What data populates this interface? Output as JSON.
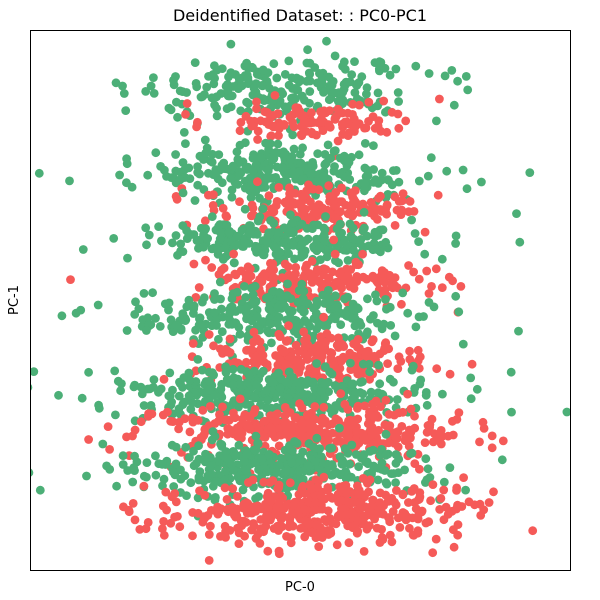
{
  "chart_data": {
    "type": "scatter",
    "title": "Deidentified Dataset: : PC0-PC1",
    "xlabel": "PC-0",
    "ylabel": "PC-1",
    "xlim": [
      -1.0,
      1.0
    ],
    "ylim": [
      -1.0,
      1.0
    ],
    "ticks_shown": false,
    "grid": false,
    "legend": "none",
    "marker_radius": 4.4,
    "series": [
      {
        "color": "#4caf77",
        "clusters": [
          {
            "cx": -0.05,
            "cy": 0.78,
            "sx": 0.24,
            "sy": 0.06,
            "n": 230
          },
          {
            "cx": -0.08,
            "cy": 0.47,
            "sx": 0.22,
            "sy": 0.05,
            "n": 300
          },
          {
            "cx": -0.06,
            "cy": 0.22,
            "sx": 0.22,
            "sy": 0.045,
            "n": 260
          },
          {
            "cx": -0.1,
            "cy": -0.06,
            "sx": 0.24,
            "sy": 0.05,
            "n": 300
          },
          {
            "cx": -0.12,
            "cy": -0.35,
            "sx": 0.27,
            "sy": 0.05,
            "n": 380
          },
          {
            "cx": -0.1,
            "cy": -0.62,
            "sx": 0.25,
            "sy": 0.05,
            "n": 360
          }
        ]
      },
      {
        "color": "#f55a58",
        "clusters": [
          {
            "cx": 0.08,
            "cy": 0.66,
            "sx": 0.16,
            "sy": 0.035,
            "n": 120
          },
          {
            "cx": 0.07,
            "cy": 0.34,
            "sx": 0.19,
            "sy": 0.04,
            "n": 180
          },
          {
            "cx": 0.05,
            "cy": 0.07,
            "sx": 0.19,
            "sy": 0.04,
            "n": 200
          },
          {
            "cx": 0.05,
            "cy": -0.21,
            "sx": 0.2,
            "sy": 0.045,
            "n": 240
          },
          {
            "cx": 0.04,
            "cy": -0.49,
            "sx": 0.24,
            "sy": 0.05,
            "n": 380
          },
          {
            "cx": 0.06,
            "cy": -0.78,
            "sx": 0.25,
            "sy": 0.06,
            "n": 420
          }
        ]
      }
    ],
    "draw_order": [
      {
        "series": 0,
        "cluster": 0
      },
      {
        "series": 1,
        "cluster": 0
      },
      {
        "series": 0,
        "cluster": 1
      },
      {
        "series": 1,
        "cluster": 1
      },
      {
        "series": 0,
        "cluster": 2
      },
      {
        "series": 1,
        "cluster": 2
      },
      {
        "series": 0,
        "cluster": 3
      },
      {
        "series": 1,
        "cluster": 3
      },
      {
        "series": 0,
        "cluster": 4
      },
      {
        "series": 1,
        "cluster": 4
      },
      {
        "series": 0,
        "cluster": 5
      },
      {
        "series": 1,
        "cluster": 5
      }
    ]
  }
}
